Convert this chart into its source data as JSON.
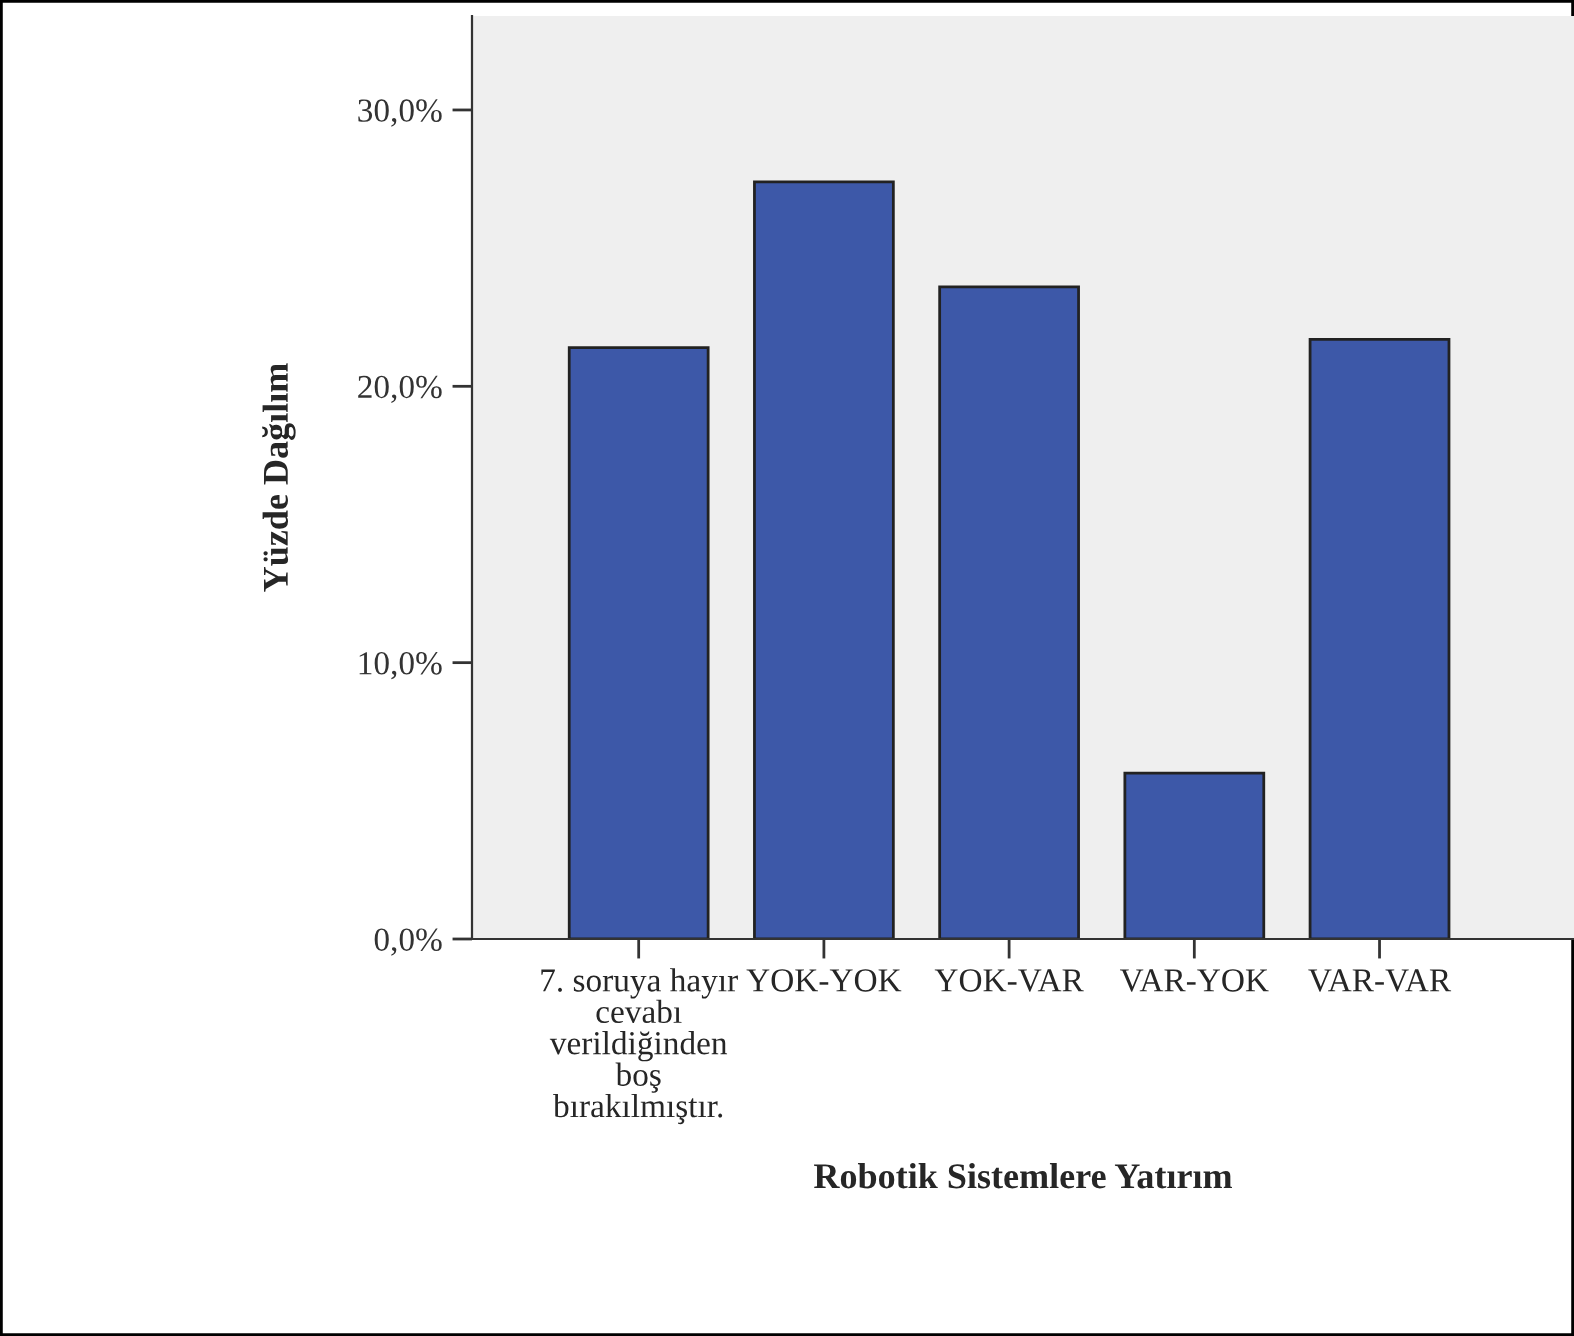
{
  "chart_data": {
    "type": "bar",
    "xlabel": "Robotik Sistemlere Yatırım",
    "ylabel": "Yüzde Dağılım",
    "categories": [
      "7. soruya hayır\ncevabı\nverildiğinden\nboş\nbırakılmıştır.",
      "YOK-YOK",
      "YOK-VAR",
      "VAR-YOK",
      "VAR-VAR"
    ],
    "values": [
      21.4,
      27.4,
      23.6,
      6.0,
      21.7
    ],
    "color": "#3d58a8",
    "ylim": [
      0,
      33.4
    ],
    "yticks": [
      {
        "value": 0,
        "label": "0,0%"
      },
      {
        "value": 10,
        "label": "10,0%"
      },
      {
        "value": 20,
        "label": "20,0%"
      },
      {
        "value": 30,
        "label": "30,0%"
      }
    ],
    "grid": false,
    "legend": false
  }
}
